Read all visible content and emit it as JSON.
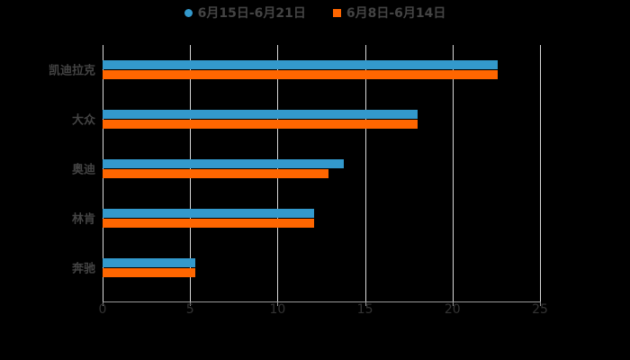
{
  "chart_data": {
    "type": "bar",
    "orientation": "horizontal",
    "title": "",
    "xlabel": "",
    "ylabel": "",
    "xlim": [
      0,
      25
    ],
    "x_ticks": [
      "0",
      "5",
      "10",
      "15",
      "20",
      "25"
    ],
    "grid": true,
    "legend_position": "top",
    "categories": [
      "凯迪拉克",
      "大众",
      "奥迪",
      "林肯",
      "奔驰"
    ],
    "series": [
      {
        "name": "6月15日-6月21日",
        "color": "#3399cc",
        "values": [
          22.6,
          18.0,
          13.8,
          12.1,
          5.3
        ]
      },
      {
        "name": "6月8日-6月14日",
        "color": "#ff6600",
        "values": [
          22.6,
          18.0,
          12.9,
          12.1,
          5.3
        ]
      }
    ]
  },
  "legend": {
    "items": [
      {
        "label": "6月15日-6月21日",
        "color": "#3399cc",
        "marker": "circle"
      },
      {
        "label": "6月8日-6月14日",
        "color": "#ff6600",
        "marker": "square"
      }
    ]
  }
}
